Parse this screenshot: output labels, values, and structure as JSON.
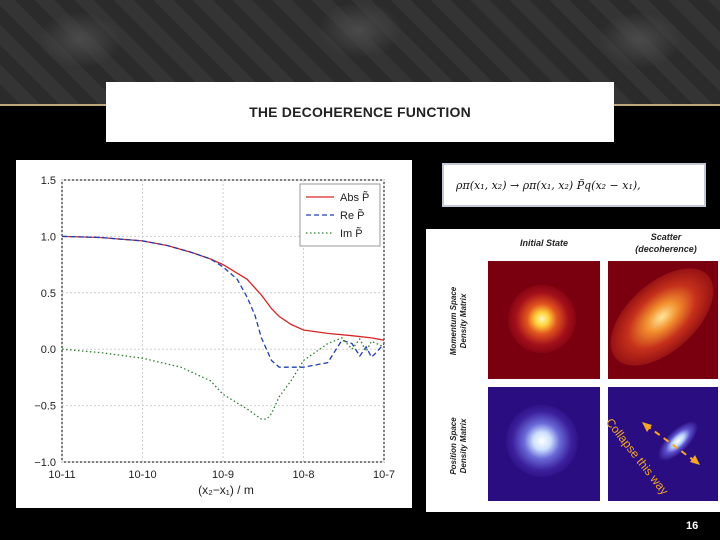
{
  "slide": {
    "title": "THE DECOHERENCE FUNCTION",
    "page_number": "16"
  },
  "formula": "ρπ(x₁, x₂) → ρπ(x₁, x₂) P̃q(x₂ − x₁),",
  "density_panel": {
    "col_headers": [
      "Initial State",
      "Scatter"
    ],
    "col_subheader": "(decoherence)",
    "row_labels": [
      "Momentum Space",
      "Density Matrix",
      "Position Space",
      "Density Matrix"
    ],
    "annotation": "Collapse this way"
  },
  "chart_data": {
    "type": "line",
    "xscale": "log",
    "xlim": [
      1e-11,
      1e-07
    ],
    "ylim": [
      -1.0,
      1.5
    ],
    "xlabel": "(x₂−x₁) / m",
    "ylabel": "",
    "title": "",
    "grid": true,
    "legend_position": "top-right",
    "x_tick_labels": [
      "10-11",
      "10-10",
      "10-9",
      "10-8",
      "10-7"
    ],
    "y_tick_labels": [
      "1.5",
      "1.0",
      "0.5",
      "0.0",
      "−0.5",
      "−1.0"
    ],
    "series": [
      {
        "name": "Abs P̃",
        "color": "#d62728",
        "dash": "solid",
        "points": [
          [
            1e-11,
            1.0
          ],
          [
            3e-11,
            0.99
          ],
          [
            1e-10,
            0.96
          ],
          [
            2e-10,
            0.92
          ],
          [
            4e-10,
            0.86
          ],
          [
            7e-10,
            0.8
          ],
          [
            1e-09,
            0.75
          ],
          [
            2e-09,
            0.62
          ],
          [
            3e-09,
            0.48
          ],
          [
            4e-09,
            0.36
          ],
          [
            5e-09,
            0.29
          ],
          [
            7e-09,
            0.22
          ],
          [
            1e-08,
            0.17
          ],
          [
            2e-08,
            0.14
          ],
          [
            4e-08,
            0.12
          ],
          [
            7e-08,
            0.1
          ],
          [
            1e-07,
            0.08
          ]
        ]
      },
      {
        "name": "Re P̃",
        "color": "#1f3fb4",
        "dash": "dashed",
        "points": [
          [
            1e-11,
            1.0
          ],
          [
            3e-11,
            0.99
          ],
          [
            1e-10,
            0.96
          ],
          [
            2e-10,
            0.92
          ],
          [
            4e-10,
            0.86
          ],
          [
            7e-10,
            0.8
          ],
          [
            1e-09,
            0.73
          ],
          [
            1.5e-09,
            0.62
          ],
          [
            2e-09,
            0.46
          ],
          [
            2.5e-09,
            0.3
          ],
          [
            3e-09,
            0.1
          ],
          [
            4e-09,
            -0.1
          ],
          [
            5e-09,
            -0.16
          ],
          [
            1e-08,
            -0.16
          ],
          [
            2e-08,
            -0.12
          ],
          [
            3e-08,
            0.08
          ],
          [
            4e-08,
            0.05
          ],
          [
            5e-08,
            -0.06
          ],
          [
            6e-08,
            0.02
          ],
          [
            7e-08,
            -0.07
          ],
          [
            8e-08,
            -0.03
          ],
          [
            1e-07,
            0.05
          ]
        ]
      },
      {
        "name": "Im P̃",
        "color": "#2e7d32",
        "dash": "dotted",
        "points": [
          [
            1e-11,
            0.0
          ],
          [
            3e-11,
            -0.03
          ],
          [
            1e-10,
            -0.08
          ],
          [
            3e-10,
            -0.16
          ],
          [
            7e-10,
            -0.28
          ],
          [
            1e-09,
            -0.4
          ],
          [
            2e-09,
            -0.53
          ],
          [
            3e-09,
            -0.62
          ],
          [
            3.5e-09,
            -0.62
          ],
          [
            4e-09,
            -0.57
          ],
          [
            5e-09,
            -0.42
          ],
          [
            7e-09,
            -0.28
          ],
          [
            1e-08,
            -0.1
          ],
          [
            2e-08,
            0.05
          ],
          [
            3e-08,
            0.1
          ],
          [
            4e-08,
            0.0
          ],
          [
            5e-08,
            0.09
          ],
          [
            6e-08,
            -0.02
          ],
          [
            7e-08,
            0.07
          ],
          [
            1e-07,
            0.02
          ]
        ]
      }
    ]
  }
}
